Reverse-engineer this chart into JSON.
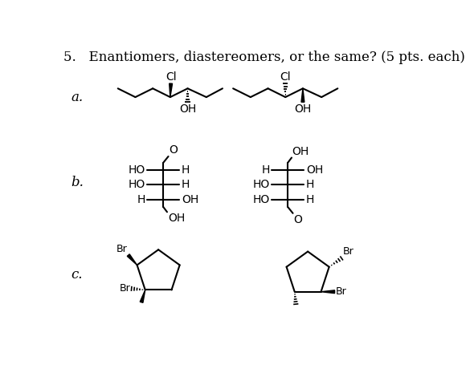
{
  "title": "5.   Enantiomers, diastereomers, or the same? (5 pts. each)",
  "title_fontsize": 12,
  "background_color": "#ffffff",
  "text_color": "#000000",
  "bond_color": "#000000",
  "label_a": "a.",
  "label_b": "b.",
  "label_c": "c.",
  "lw": 1.5,
  "fs": 10,
  "fs_label": 12
}
